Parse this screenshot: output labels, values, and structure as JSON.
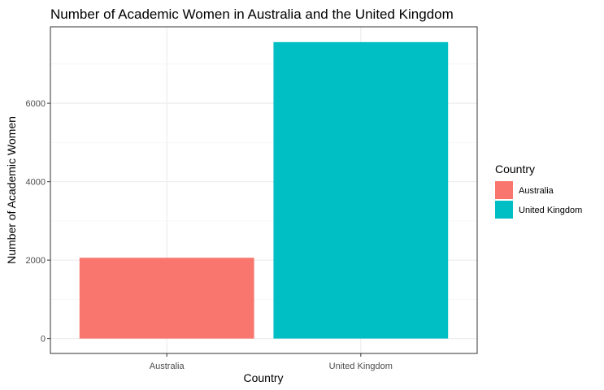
{
  "chart_data": {
    "type": "bar",
    "title": "Number of Academic Women in Australia and the United Kingdom",
    "xlabel": "Country",
    "ylabel": "Number of Academic Women",
    "categories": [
      "Australia",
      "United Kingdom"
    ],
    "values": [
      2060,
      7560
    ],
    "colors": [
      "#F8766D",
      "#00BFC4"
    ],
    "ylim": [
      -380,
      7950
    ],
    "yticks": [
      0,
      2000,
      4000,
      6000
    ],
    "yminor": [
      1000,
      3000,
      5000,
      7000
    ],
    "grid": true,
    "legend": {
      "title": "Country",
      "position": "right",
      "items": [
        {
          "label": "Australia",
          "color": "#F8766D"
        },
        {
          "label": "United Kingdom",
          "color": "#00BFC4"
        }
      ]
    }
  }
}
